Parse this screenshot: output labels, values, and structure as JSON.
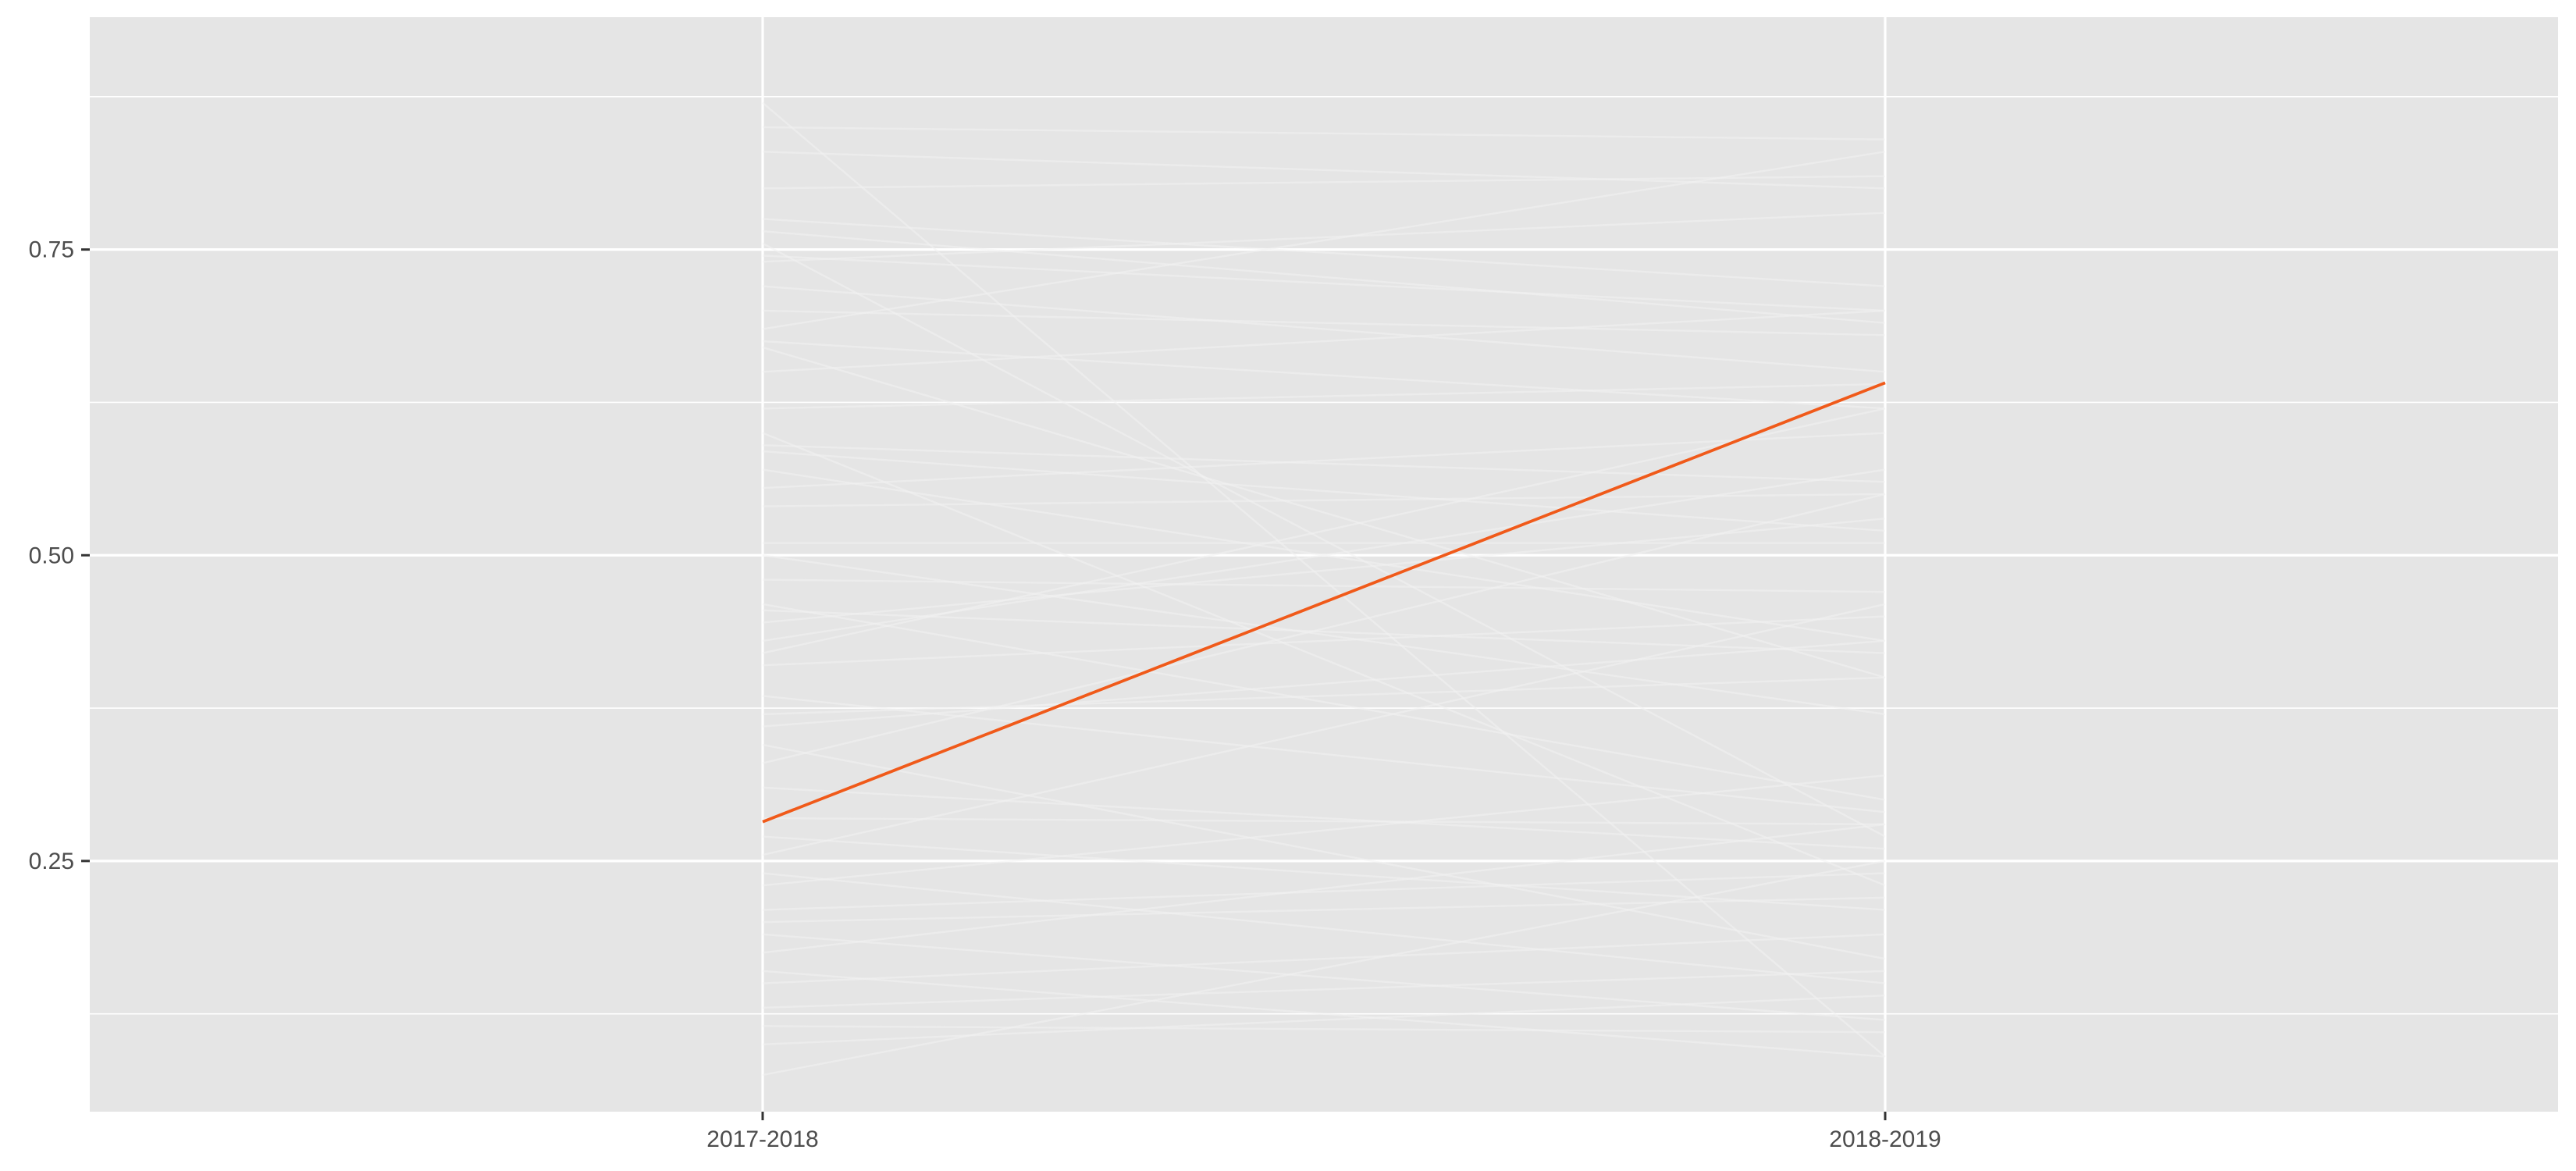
{
  "chart_data": {
    "type": "line",
    "title": "",
    "xlabel": "",
    "ylabel": "",
    "categories": [
      "2017-2018",
      "2018-2019"
    ],
    "y_ticks": [
      0.25,
      0.5,
      0.75
    ],
    "y_tick_labels": [
      "0.25",
      "0.50",
      "0.75"
    ],
    "ylim": [
      0.045,
      0.94
    ],
    "grid": true,
    "legend": "none",
    "colors": {
      "panel": "#e5e5e5",
      "background_series": "#f2f2f2",
      "highlight_series": "#f05a1a"
    },
    "highlight": {
      "values": [
        0.282,
        0.641
      ]
    },
    "background_series": [
      [
        0.87,
        0.09
      ],
      [
        0.85,
        0.84
      ],
      [
        0.83,
        0.8
      ],
      [
        0.8,
        0.81
      ],
      [
        0.775,
        0.72
      ],
      [
        0.765,
        0.69
      ],
      [
        0.755,
        0.27
      ],
      [
        0.745,
        0.7
      ],
      [
        0.74,
        0.78
      ],
      [
        0.72,
        0.65
      ],
      [
        0.7,
        0.68
      ],
      [
        0.685,
        0.83
      ],
      [
        0.675,
        0.62
      ],
      [
        0.67,
        0.4
      ],
      [
        0.65,
        0.7
      ],
      [
        0.62,
        0.64
      ],
      [
        0.6,
        0.23
      ],
      [
        0.59,
        0.56
      ],
      [
        0.585,
        0.52
      ],
      [
        0.57,
        0.43
      ],
      [
        0.555,
        0.6
      ],
      [
        0.54,
        0.55
      ],
      [
        0.51,
        0.51
      ],
      [
        0.5,
        0.37
      ],
      [
        0.48,
        0.47
      ],
      [
        0.46,
        0.3
      ],
      [
        0.455,
        0.42
      ],
      [
        0.445,
        0.53
      ],
      [
        0.43,
        0.57
      ],
      [
        0.42,
        0.62
      ],
      [
        0.41,
        0.45
      ],
      [
        0.385,
        0.29
      ],
      [
        0.37,
        0.4
      ],
      [
        0.36,
        0.43
      ],
      [
        0.345,
        0.17
      ],
      [
        0.33,
        0.55
      ],
      [
        0.31,
        0.26
      ],
      [
        0.285,
        0.28
      ],
      [
        0.27,
        0.21
      ],
      [
        0.255,
        0.46
      ],
      [
        0.24,
        0.15
      ],
      [
        0.23,
        0.32
      ],
      [
        0.21,
        0.24
      ],
      [
        0.2,
        0.22
      ],
      [
        0.19,
        0.12
      ],
      [
        0.175,
        0.28
      ],
      [
        0.16,
        0.09
      ],
      [
        0.15,
        0.19
      ],
      [
        0.13,
        0.16
      ],
      [
        0.115,
        0.11
      ],
      [
        0.1,
        0.14
      ],
      [
        0.075,
        0.25
      ]
    ]
  }
}
